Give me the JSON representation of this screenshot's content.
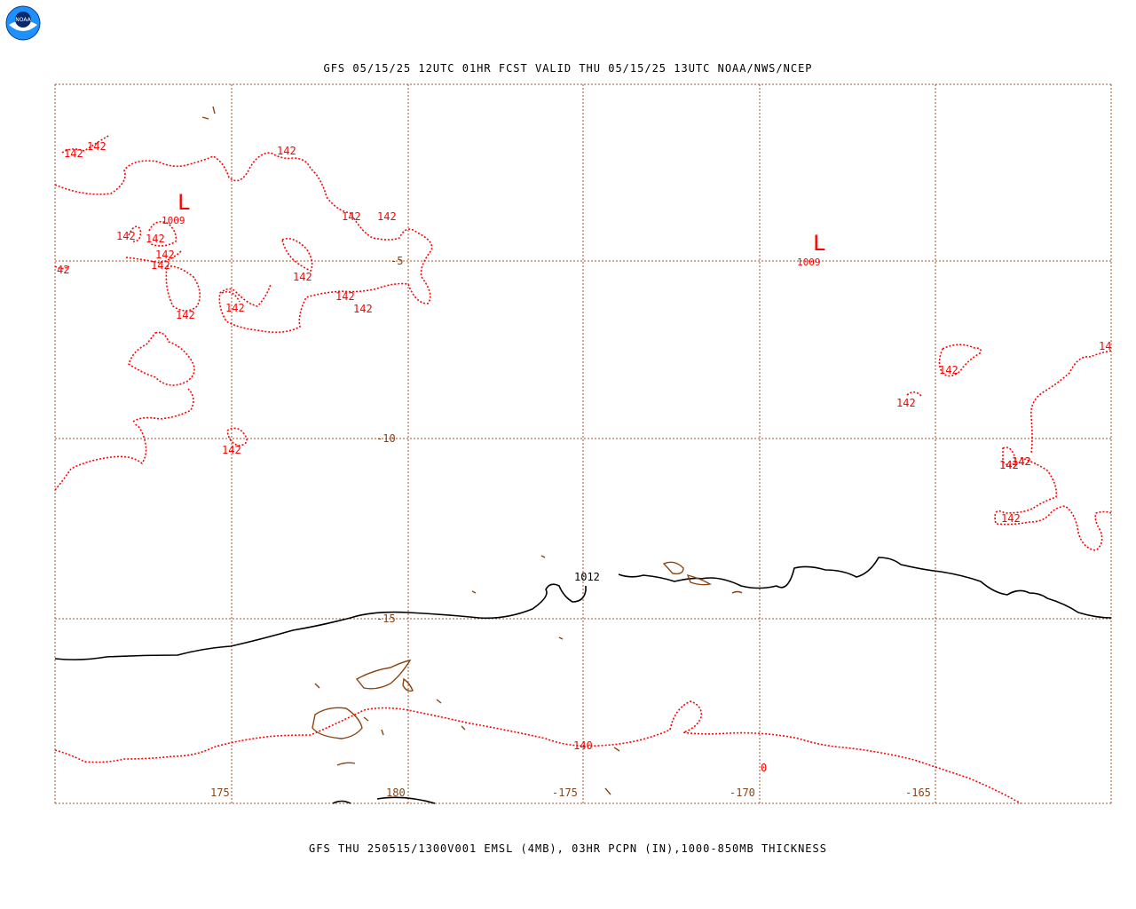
{
  "header": {
    "logo_text": "NOAA",
    "title": "GFS 05/15/25 12UTC 01HR FCST VALID THU 05/15/25 13UTC NOAA/NWS/NCEP"
  },
  "footer": {
    "caption": "GFS THU 250515/1300V001 EMSL (4MB), 03HR PCPN (IN),1000-850MB THICKNESS"
  },
  "map": {
    "colors": {
      "grid": "#a0522d",
      "thickness": "#ff0000",
      "pressure": "#000000",
      "coast": "#8b4513"
    },
    "lat_labels": [
      "-5",
      "-10",
      "-15"
    ],
    "lon_labels": [
      "175",
      "180",
      "-175",
      "-170",
      "-165"
    ],
    "lows": [
      {
        "symbol": "L",
        "value": "1009"
      },
      {
        "symbol": "L",
        "value": "1009"
      }
    ],
    "isobar_labels": [
      "1012"
    ],
    "thickness_labels": [
      "142",
      "142",
      "142",
      "142",
      "142",
      "142",
      "142",
      "142",
      "142",
      "42",
      "142",
      "142",
      "142",
      "142",
      "142",
      "142",
      "142",
      "142",
      "142",
      "142",
      "142",
      "142",
      "142",
      "14",
      "140",
      "0"
    ]
  }
}
